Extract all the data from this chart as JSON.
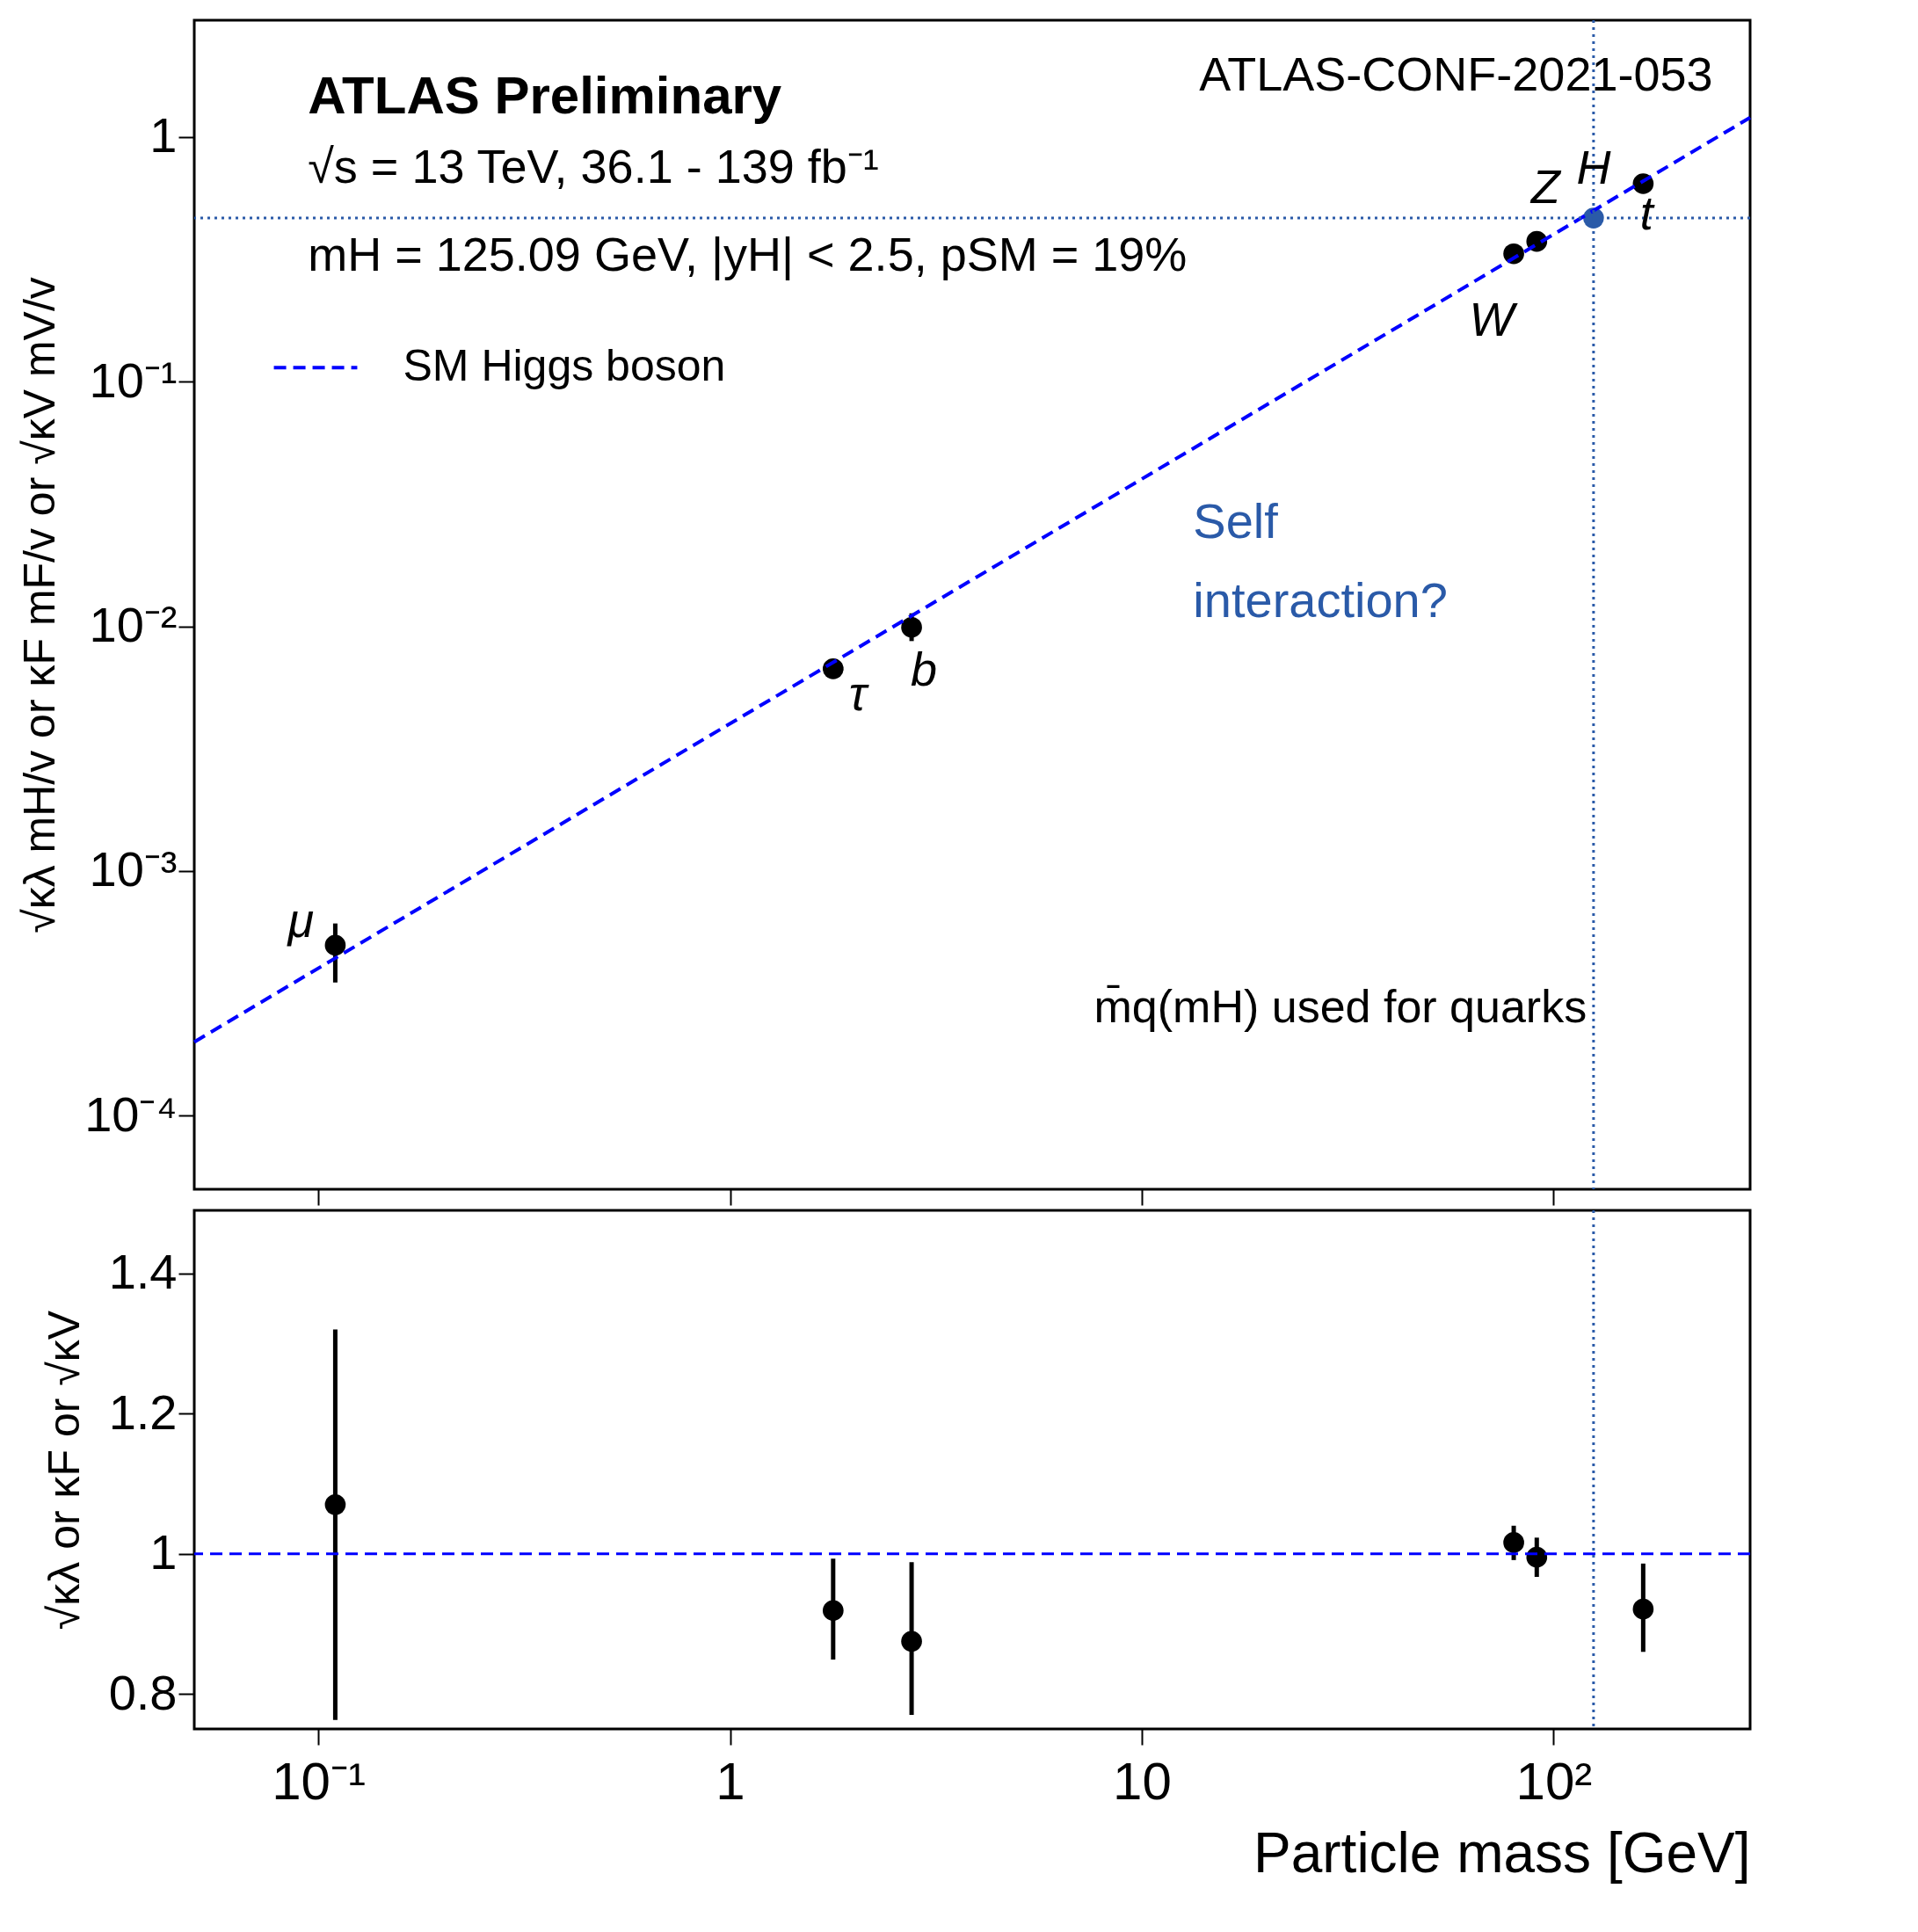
{
  "chart_data": [
    {
      "type": "scatter",
      "ylabel": "√κλ mH/v  or  κF mF/v  or  √κV mV/v",
      "log": "xy",
      "xlim": [
        0.05,
        300
      ],
      "ylim": [
        5e-05,
        3.0
      ],
      "yticks": [
        {
          "value": 0.0001,
          "label": "10⁻⁴"
        },
        {
          "value": 0.001,
          "label": "10⁻³"
        },
        {
          "value": 0.01,
          "label": "10⁻²"
        },
        {
          "value": 0.1,
          "label": "10⁻¹"
        },
        1
      ],
      "tick_labels": "y",
      "grid": false,
      "legend": "top left",
      "series": [
        {
          "marker": "circle",
          "color": "#000000",
          "x": [
            0.11,
            1.78,
            2.76,
            80,
            91,
            165
          ],
          "values": [
            0.000497,
            0.0067,
            0.0099,
            0.333,
            0.374,
            0.644
          ],
          "errors": [
            [
              0.00035,
              0.00061
            ],
            null,
            [
              0.0087,
              0.0113
            ],
            null,
            null,
            null
          ]
        },
        {
          "marker": "circle",
          "color": "#2a5aa8",
          "x": [
            125
          ],
          "values": [
            0.466
          ]
        },
        {
          "type": "line",
          "marker": "none",
          "name": "SM Higgs boson",
          "color": "#0000ff",
          "line_style": "dashed",
          "x": [
            0.05,
            300
          ],
          "values": [
            0.0002,
            1.2
          ]
        }
      ],
      "ref_lines": [
        {
          "axis": "x",
          "value": 125,
          "color": "#2a5aa8",
          "line_style": "dotted"
        },
        {
          "axis": "y",
          "value": 0.466,
          "color": "#2a5aa8",
          "line_style": "dotted"
        }
      ],
      "annotations": [
        "ATLAS Preliminary",
        "√s = 13 TeV, 36.1 - 139 fb⁻¹",
        "mH = 125.09 GeV, |yH| < 2.5, pSM = 19%",
        "ATLAS-CONF-2021-053",
        "Self interaction?",
        "m̄q(mH) used for quarks",
        {
          "text": "μ",
          "x": 0.11,
          "y": 0.000497
        },
        {
          "text": "τ",
          "x": 1.78,
          "y": 0.0067
        },
        {
          "text": "b",
          "x": 2.76,
          "y": 0.0099
        },
        {
          "text": "W",
          "x": 80,
          "y": 0.333
        },
        {
          "text": "Z",
          "x": 91,
          "y": 0.374
        },
        {
          "text": "H",
          "x": 125,
          "y": 0.466
        },
        {
          "text": "t",
          "x": 165,
          "y": 0.644
        }
      ]
    },
    {
      "type": "scatter",
      "ylabel": "√κλ  or  κF or √κV",
      "xlabel": "Particle mass [GeV]",
      "log": "x",
      "xlim": [
        0.05,
        300
      ],
      "ylim": [
        0.75,
        1.49
      ],
      "xticks": [
        {
          "value": 0.1,
          "label": "10⁻¹"
        },
        1,
        10,
        {
          "value": 100,
          "label": "10²"
        }
      ],
      "yticks": [
        0.8,
        1,
        1.2,
        1.4
      ],
      "grid": false,
      "series": [
        {
          "marker": "circle",
          "color": "#000000",
          "x": [
            0.11,
            1.78,
            2.76,
            80,
            91,
            165
          ],
          "values": [
            1.07,
            0.919,
            0.875,
            1.016,
            0.995,
            0.921
          ],
          "errors": [
            [
              0.763,
              1.32
            ],
            [
              0.849,
              0.993
            ],
            [
              0.77,
              0.988
            ],
            [
              0.991,
              1.04
            ],
            [
              0.967,
              1.023
            ],
            [
              0.86,
              0.986
            ]
          ]
        }
      ],
      "ref_lines": [
        {
          "axis": "y",
          "value": 1,
          "color": "#0000ff",
          "line_style": "dashed"
        },
        {
          "axis": "x",
          "value": 125,
          "color": "#2a5aa8",
          "line_style": "dotted"
        }
      ]
    }
  ]
}
